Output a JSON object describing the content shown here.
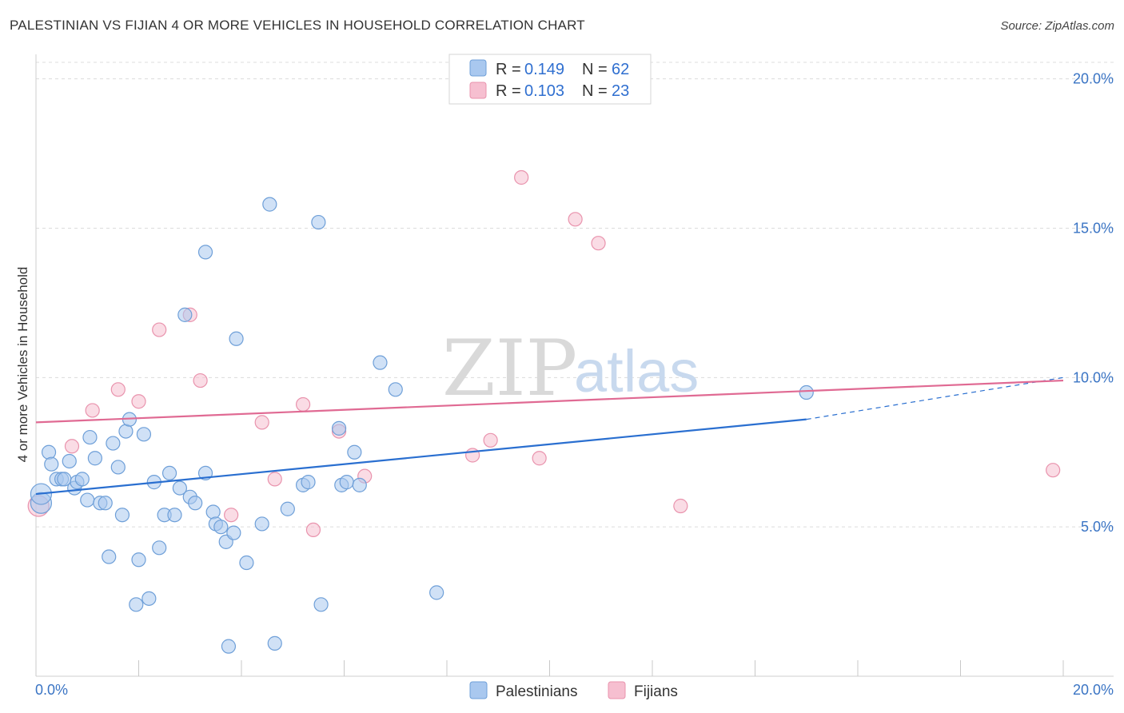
{
  "header": {
    "title": "PALESTINIAN VS FIJIAN 4 OR MORE VEHICLES IN HOUSEHOLD CORRELATION CHART",
    "source": "Source: ZipAtlas.com"
  },
  "watermark": {
    "zip": "ZIP",
    "atlas": "atlas"
  },
  "colors": {
    "blue_fill": "#a9c8ef",
    "blue_stroke": "#6e9fd8",
    "blue_line": "#2a6fd0",
    "pink_fill": "#f6bfd0",
    "pink_stroke": "#e993ad",
    "pink_line": "#e06a93",
    "grid": "#dcdcdc",
    "axis_text": "#3a74c4"
  },
  "legend": {
    "r_label": "R =",
    "n_label": "N =",
    "rows": [
      {
        "series": "Palestinians",
        "r": "0.149",
        "n": "62"
      },
      {
        "series": "Fijians",
        "r": "0.103",
        "n": "23"
      }
    ]
  },
  "bottom_legend": [
    "Palestinians",
    "Fijians"
  ],
  "chart_data": {
    "type": "scatter",
    "title": "PALESTINIAN VS FIJIAN 4 OR MORE VEHICLES IN HOUSEHOLD CORRELATION CHART",
    "xlabel": "",
    "ylabel": "4 or more Vehicles in Household",
    "xlim": [
      0,
      20
    ],
    "ylim": [
      0,
      20.5
    ],
    "x_tick_labels": [
      "0.0%",
      "20.0%"
    ],
    "y_ticks": [
      5,
      10,
      15,
      20
    ],
    "y_tick_labels": [
      "5.0%",
      "10.0%",
      "15.0%",
      "20.0%"
    ],
    "grid": true,
    "series": [
      {
        "name": "Palestinians",
        "color": "#a9c8ef",
        "points": [
          [
            0.1,
            5.8
          ],
          [
            0.1,
            6.1
          ],
          [
            0.25,
            7.5
          ],
          [
            0.3,
            7.1
          ],
          [
            0.4,
            6.6
          ],
          [
            0.5,
            6.6
          ],
          [
            0.55,
            6.6
          ],
          [
            0.65,
            7.2
          ],
          [
            0.75,
            6.3
          ],
          [
            0.8,
            6.5
          ],
          [
            0.9,
            6.6
          ],
          [
            1.0,
            5.9
          ],
          [
            1.05,
            8.0
          ],
          [
            1.15,
            7.3
          ],
          [
            1.25,
            5.8
          ],
          [
            1.35,
            5.8
          ],
          [
            1.42,
            4.0
          ],
          [
            1.5,
            7.8
          ],
          [
            1.6,
            7.0
          ],
          [
            1.68,
            5.4
          ],
          [
            1.75,
            8.2
          ],
          [
            1.82,
            8.6
          ],
          [
            1.95,
            2.4
          ],
          [
            2.0,
            3.9
          ],
          [
            2.1,
            8.1
          ],
          [
            2.2,
            2.6
          ],
          [
            2.3,
            6.5
          ],
          [
            2.4,
            4.3
          ],
          [
            2.5,
            5.4
          ],
          [
            2.6,
            6.8
          ],
          [
            2.7,
            5.4
          ],
          [
            2.8,
            6.3
          ],
          [
            2.9,
            12.1
          ],
          [
            3.0,
            6.0
          ],
          [
            3.1,
            5.8
          ],
          [
            3.3,
            6.8
          ],
          [
            3.3,
            14.2
          ],
          [
            3.45,
            5.5
          ],
          [
            3.5,
            5.1
          ],
          [
            3.6,
            5.0
          ],
          [
            3.7,
            4.5
          ],
          [
            3.75,
            1.0
          ],
          [
            3.85,
            4.8
          ],
          [
            3.9,
            11.3
          ],
          [
            4.1,
            3.8
          ],
          [
            4.4,
            5.1
          ],
          [
            4.55,
            15.8
          ],
          [
            4.65,
            1.1
          ],
          [
            4.9,
            5.6
          ],
          [
            5.2,
            6.4
          ],
          [
            5.3,
            6.5
          ],
          [
            5.5,
            15.2
          ],
          [
            5.55,
            2.4
          ],
          [
            5.9,
            8.3
          ],
          [
            5.95,
            6.4
          ],
          [
            6.05,
            6.5
          ],
          [
            6.2,
            7.5
          ],
          [
            6.3,
            6.4
          ],
          [
            6.7,
            10.5
          ],
          [
            7.0,
            9.6
          ],
          [
            7.8,
            2.8
          ],
          [
            15.0,
            9.5
          ]
        ]
      },
      {
        "name": "Fijians",
        "color": "#f6bfd0",
        "points": [
          [
            0.05,
            5.7
          ],
          [
            0.7,
            7.7
          ],
          [
            1.1,
            8.9
          ],
          [
            1.6,
            9.6
          ],
          [
            2.0,
            9.2
          ],
          [
            2.4,
            11.6
          ],
          [
            3.0,
            12.1
          ],
          [
            3.2,
            9.9
          ],
          [
            3.8,
            5.4
          ],
          [
            4.4,
            8.5
          ],
          [
            4.65,
            6.6
          ],
          [
            5.2,
            9.1
          ],
          [
            5.4,
            4.9
          ],
          [
            5.9,
            8.2
          ],
          [
            6.4,
            6.7
          ],
          [
            8.5,
            7.4
          ],
          [
            8.85,
            7.9
          ],
          [
            9.45,
            16.7
          ],
          [
            9.8,
            7.3
          ],
          [
            10.5,
            15.3
          ],
          [
            10.95,
            14.5
          ],
          [
            12.55,
            5.7
          ],
          [
            19.8,
            6.9
          ]
        ]
      }
    ],
    "trend_lines": [
      {
        "series": "Palestinians",
        "x": [
          0,
          15.0
        ],
        "y": [
          6.1,
          8.6
        ],
        "dashed_extension_to": [
          20,
          10.0
        ]
      },
      {
        "series": "Fijians",
        "x": [
          0,
          20
        ],
        "y": [
          8.5,
          9.9
        ]
      }
    ]
  }
}
